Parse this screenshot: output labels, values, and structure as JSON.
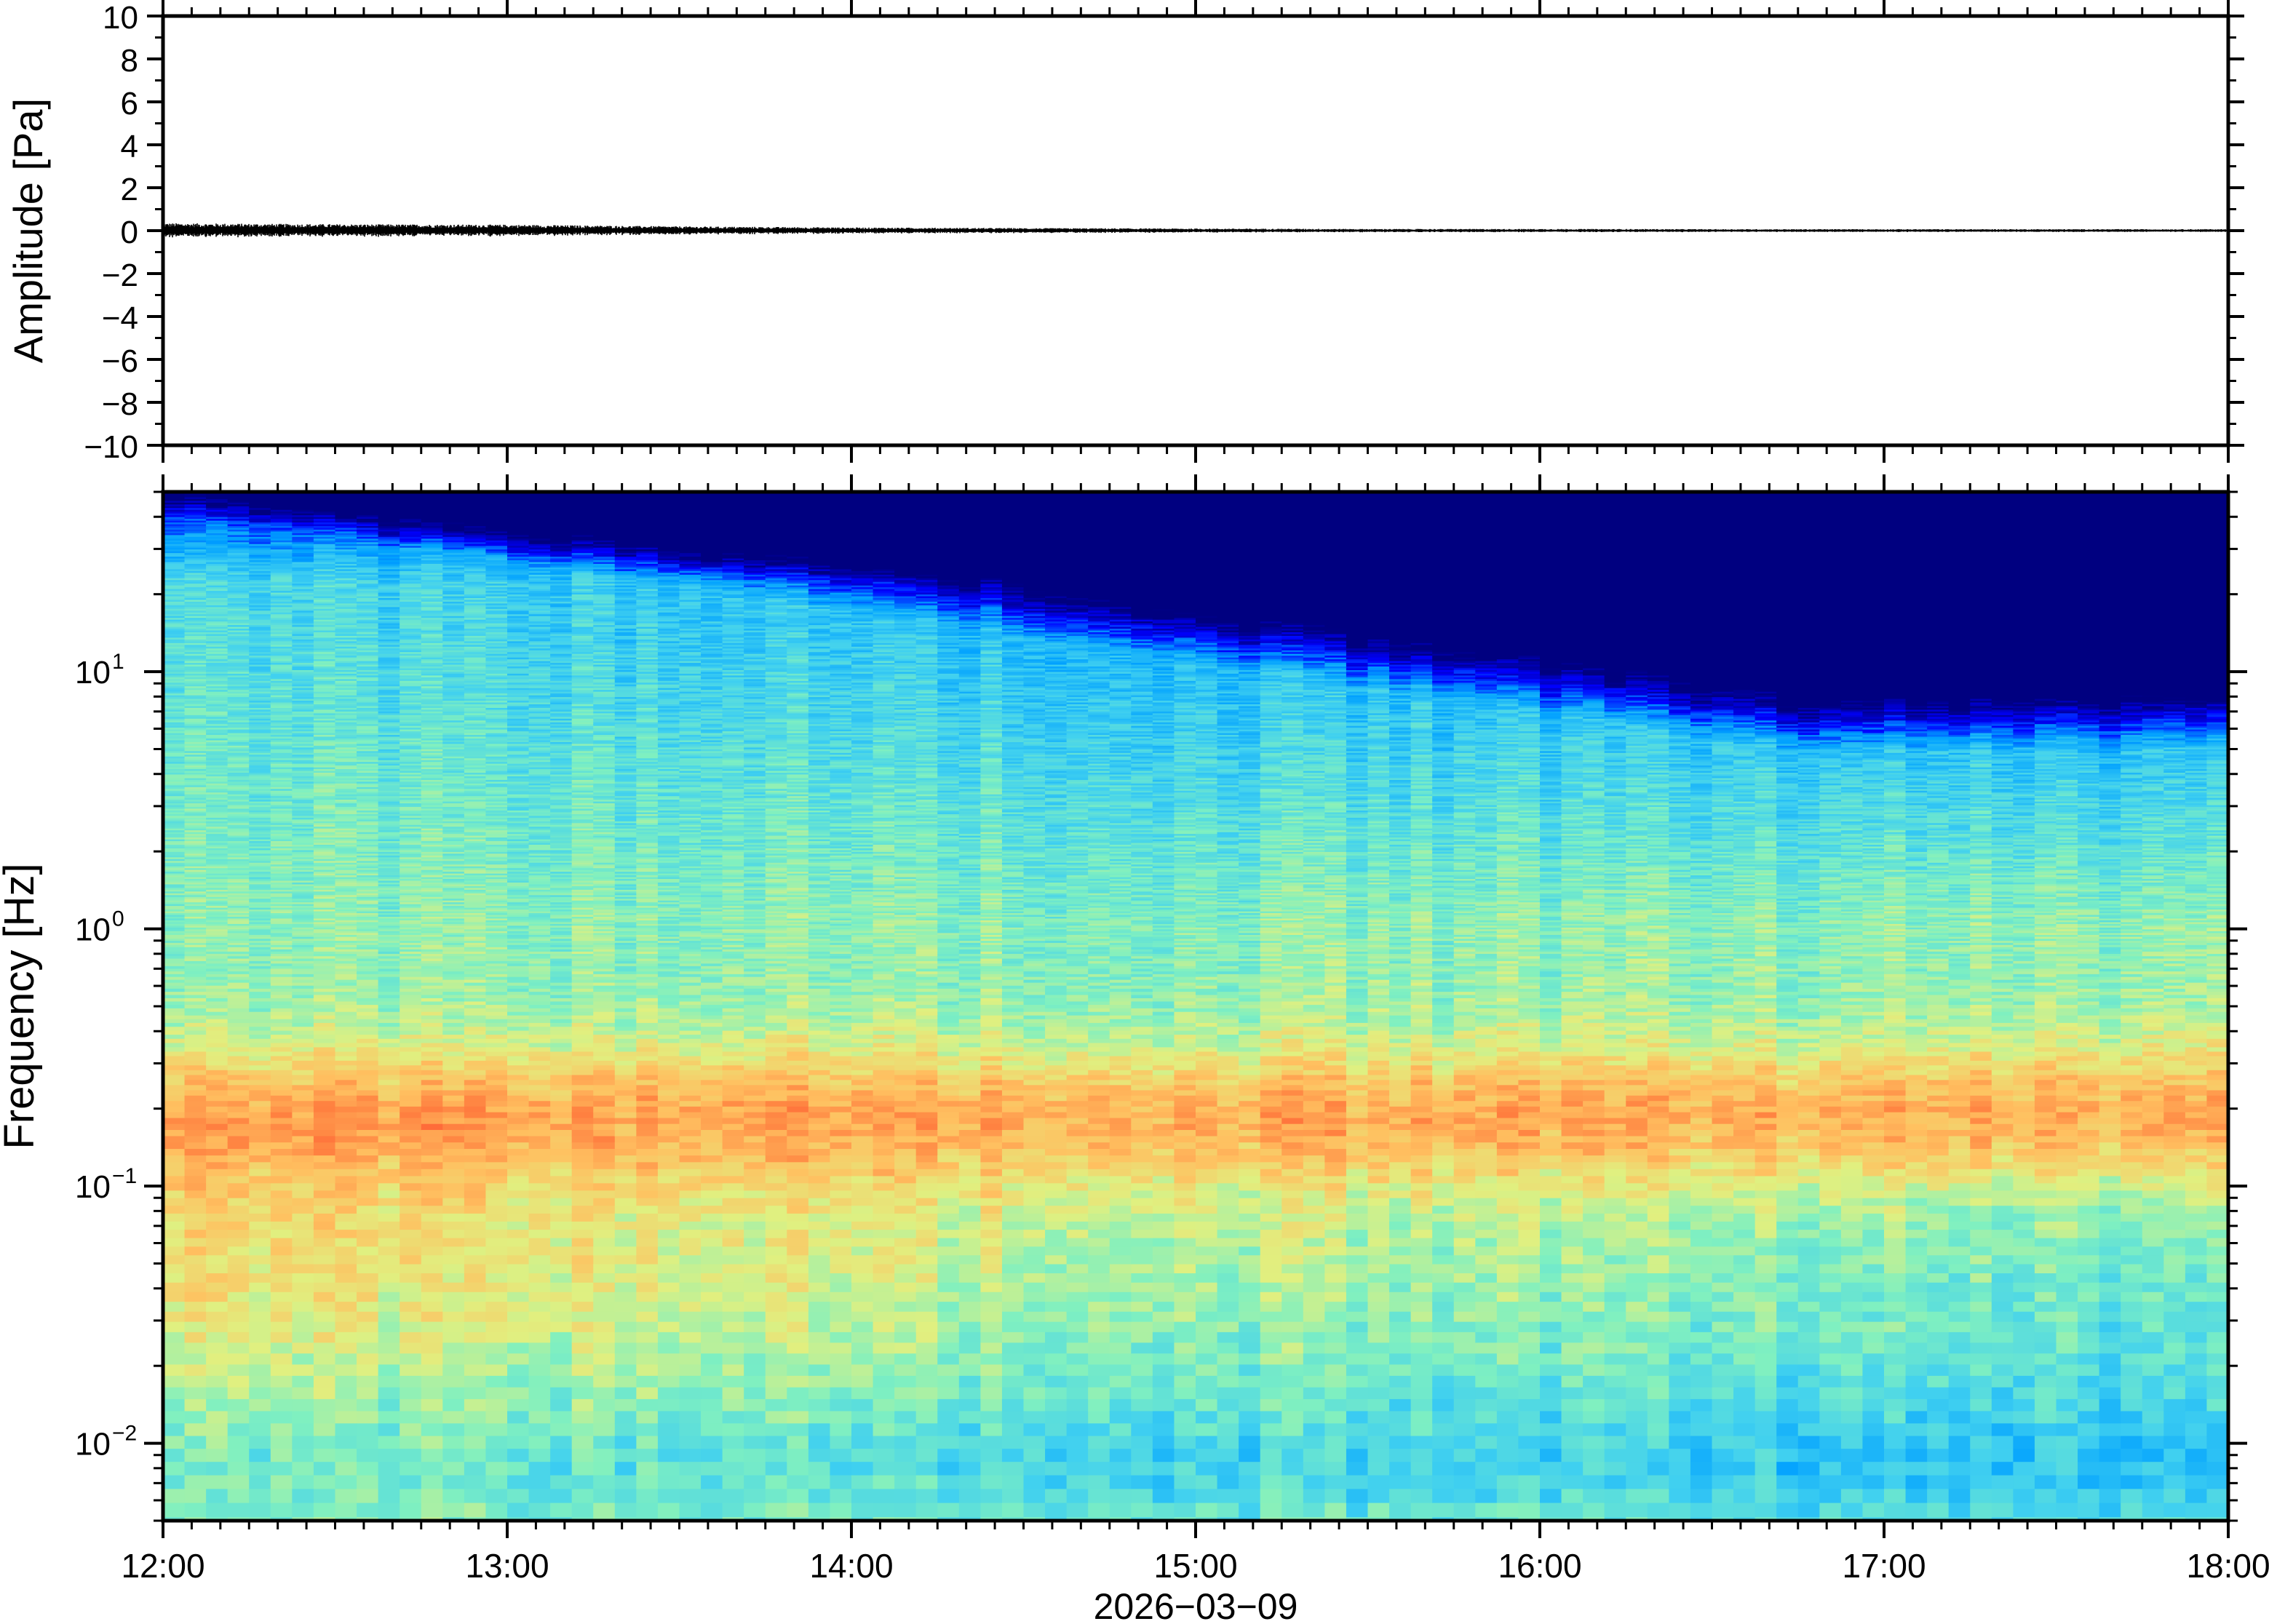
{
  "chart_data": [
    {
      "type": "line",
      "title": "",
      "xlabel": "",
      "ylabel": "Amplitude [Pa]",
      "ylim": [
        -10,
        10
      ],
      "yticks": [
        "10",
        "8",
        "6",
        "4",
        "2",
        "0",
        "−2",
        "−4",
        "−6",
        "−8",
        "−10"
      ],
      "ytick_values": [
        10,
        8,
        6,
        4,
        2,
        0,
        -2,
        -4,
        -6,
        -8,
        -10
      ],
      "xlim": [
        "12:00",
        "18:00"
      ],
      "grid": false,
      "series": [
        {
          "trace_color": "#000000",
          "x_hours": [
            12.0,
            12.5,
            13.0,
            13.5,
            14.0,
            14.5,
            15.0,
            15.5,
            16.0,
            16.5,
            17.0,
            17.5,
            18.0
          ],
          "peak_amplitude_pa": [
            0.35,
            0.3,
            0.28,
            0.2,
            0.15,
            0.12,
            0.1,
            0.08,
            0.08,
            0.07,
            0.07,
            0.07,
            0.07
          ]
        }
      ]
    },
    {
      "type": "heatmap",
      "title": "",
      "ylabel": "Frequency [Hz]",
      "xlabel": "2026−03−09",
      "yscale": "log",
      "ylim": [
        0.005,
        50
      ],
      "ytick_values": [
        10,
        1,
        0.1,
        0.01
      ],
      "yticks": [
        {
          "base": "10",
          "exp": "1"
        },
        {
          "base": "10",
          "exp": "0"
        },
        {
          "base": "10",
          "exp": "−1"
        },
        {
          "base": "10",
          "exp": "−2"
        }
      ],
      "xticks": [
        "12:00",
        "13:00",
        "14:00",
        "15:00",
        "16:00",
        "17:00",
        "18:00"
      ],
      "xtick_values": [
        12,
        13,
        14,
        15,
        16,
        17,
        18
      ],
      "colormap": "jet",
      "colormap_stops": [
        "#000080",
        "#0000ff",
        "#00a0ff",
        "#40d0f0",
        "#80f0c0",
        "#e0f080",
        "#ffc060",
        "#ff8040",
        "#ff2020"
      ],
      "grid": false
    }
  ]
}
